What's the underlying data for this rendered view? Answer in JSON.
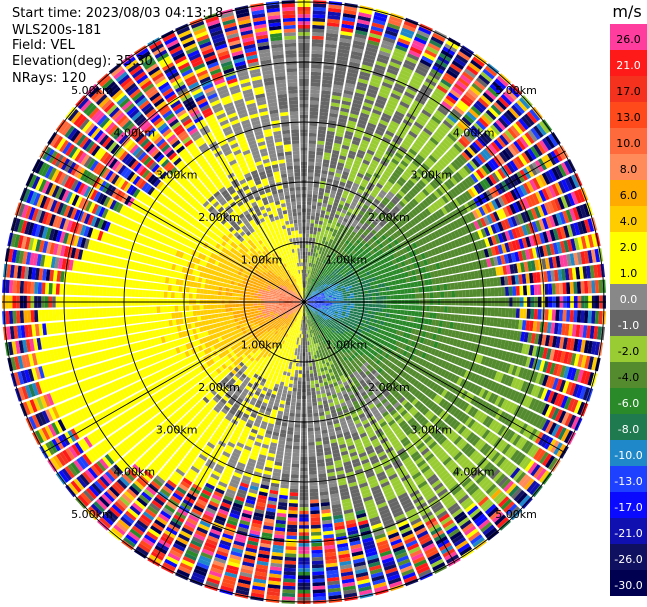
{
  "header": {
    "start_time": "Start time: 2023/08/03 04:13:18",
    "instrument": "WLS200s-181",
    "field": "Field: VEL",
    "elevation": "Elevation(deg): 35.30",
    "nrays": "NRays: 120"
  },
  "chart_data": {
    "type": "heatmap",
    "subtype": "polar-ppi",
    "unit_label": "m/s",
    "nrays": 120,
    "range_km_max": 6.5,
    "range_rings_km": [
      1.0,
      2.0,
      3.0,
      4.0,
      5.0
    ],
    "ring_labels": [
      "1.00km",
      "2.00km",
      "3.00km",
      "4.00km",
      "5.00km"
    ],
    "radial_lines_every_deg": 30,
    "colorbar": {
      "ticks": [
        "26.0",
        "21.0",
        "17.0",
        "13.0",
        "10.0",
        "8.0",
        "6.0",
        "4.0",
        "2.0",
        "1.0",
        "0.0",
        "-1.0",
        "-2.0",
        "-4.0",
        "-6.0",
        "-8.0",
        "-10.0",
        "-13.0",
        "-17.0",
        "-21.0",
        "-26.0",
        "-30.0"
      ],
      "colors": [
        "#ff3d9e",
        "#ff1a1a",
        "#f5321e",
        "#ff4a1c",
        "#ff6a3c",
        "#ff8a5a",
        "#ffaa00",
        "#ffcc00",
        "#ffff00",
        "#ffff00",
        "#888888",
        "#666666",
        "#99cc33",
        "#558b2f",
        "#2a8a2a",
        "#1f7a50",
        "#1e88c8",
        "#1e40ff",
        "#0a0aff",
        "#1010b0",
        "#101060",
        "#000050"
      ]
    },
    "velocity_field_description_values": {
      "receding_peak_ms": 13.0,
      "approaching_peak_ms": -13.0,
      "zero_line_bearing_deg": 0
    }
  }
}
